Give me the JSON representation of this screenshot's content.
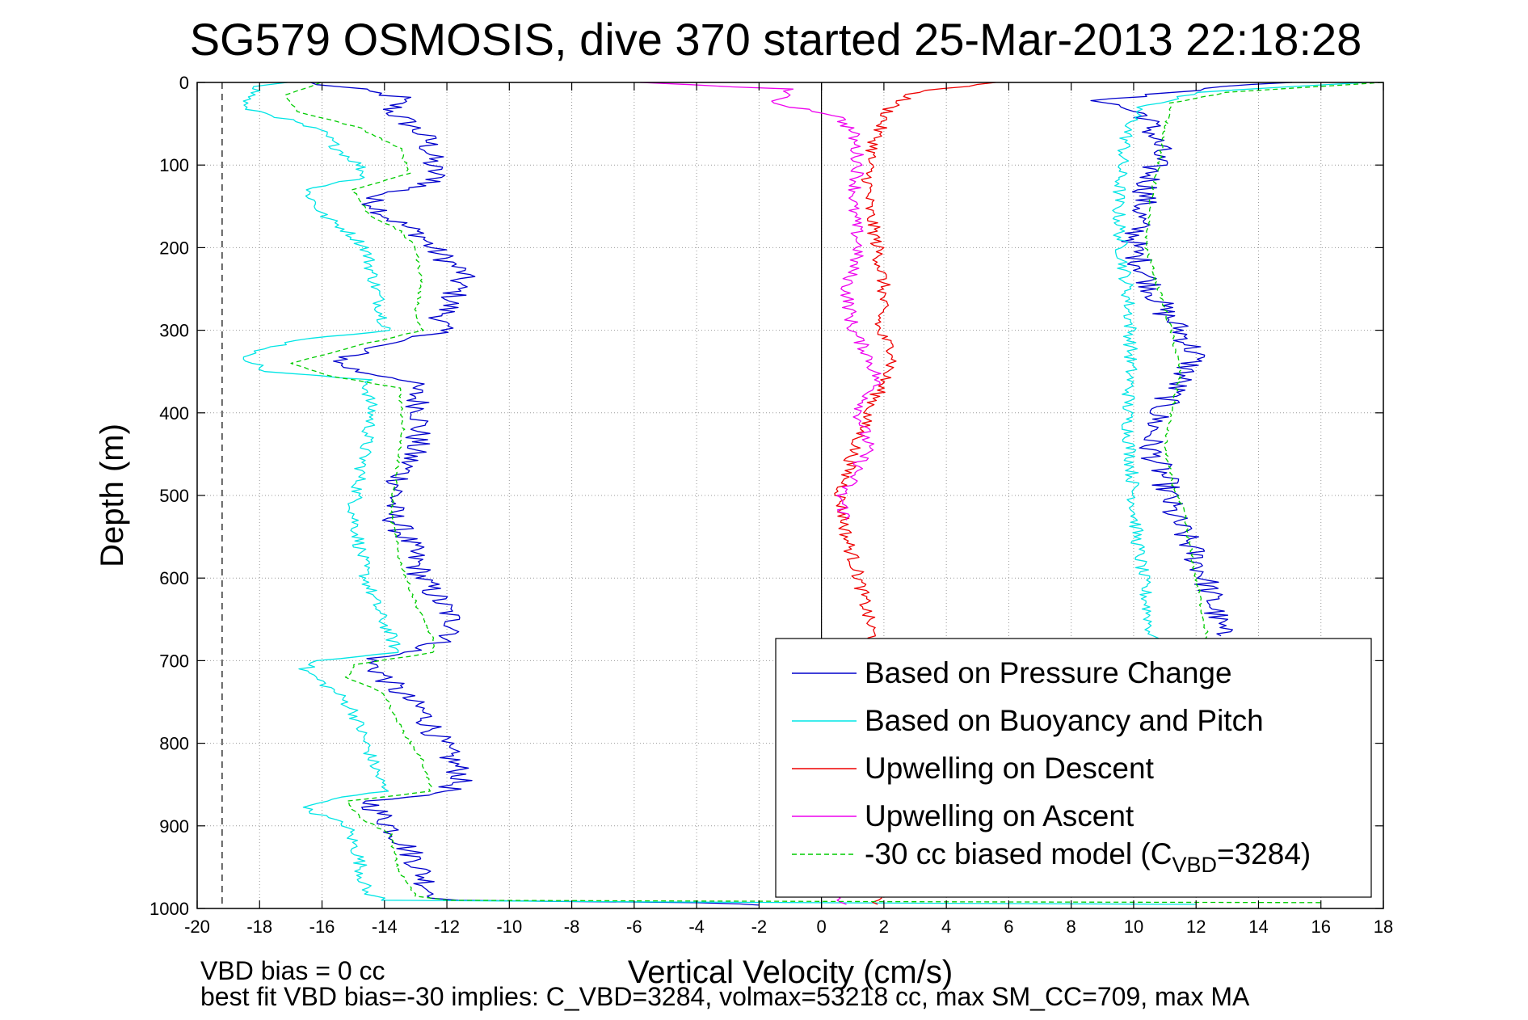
{
  "chart_data": {
    "type": "line",
    "title": "SG579 OSMOSIS, dive 370 started 25-Mar-2013 22:18:28",
    "xlabel": "Vertical Velocity (cm/s)",
    "ylabel": "Depth (m)",
    "xlim": [
      -20,
      18
    ],
    "ylim": [
      0,
      1000
    ],
    "y_reversed": true,
    "grid": true,
    "x_ticks": [
      -20,
      -18,
      -16,
      -14,
      -12,
      -10,
      -8,
      -6,
      -4,
      -2,
      0,
      2,
      4,
      6,
      8,
      10,
      12,
      14,
      16,
      18
    ],
    "y_ticks": [
      0,
      100,
      200,
      300,
      400,
      500,
      600,
      700,
      800,
      900,
      1000
    ],
    "reference_lines": [
      {
        "x": -19.2,
        "style": "dashed"
      },
      {
        "x": 0,
        "style": "solid"
      }
    ],
    "legend_position": "bottom-right",
    "legend_note_main": "-30 cc biased model (C",
    "legend_note_sub": "VBD",
    "legend_note_tail": "=3284)",
    "series": [
      {
        "name": "Based on Pressure Change",
        "color": "#0000cc",
        "style": "solid",
        "points": [
          [
            [
              -16.5,
              0
            ],
            [
              -15,
              8
            ],
            [
              -13.5,
              18
            ],
            [
              -13.8,
              35
            ],
            [
              -13.2,
              50
            ],
            [
              -12.6,
              70
            ],
            [
              -12.5,
              100
            ],
            [
              -12.3,
              120
            ],
            [
              -14.5,
              140
            ],
            [
              -13.8,
              165
            ],
            [
              -12.8,
              185
            ],
            [
              -12.5,
              200
            ],
            [
              -11.5,
              230
            ],
            [
              -11.8,
              260
            ],
            [
              -12.2,
              290
            ],
            [
              -12.3,
              305
            ],
            [
              -14.5,
              320
            ],
            [
              -15.5,
              340
            ],
            [
              -14.8,
              350
            ],
            [
              -13.2,
              360
            ],
            [
              -12.8,
              400
            ],
            [
              -13.0,
              440
            ],
            [
              -13.5,
              480
            ],
            [
              -13.8,
              520
            ],
            [
              -13.2,
              560
            ],
            [
              -12.8,
              600
            ],
            [
              -12.0,
              640
            ],
            [
              -11.6,
              665
            ],
            [
              -12.5,
              682
            ],
            [
              -14.5,
              700
            ],
            [
              -14.0,
              720
            ],
            [
              -13.5,
              740
            ],
            [
              -12.8,
              760
            ],
            [
              -12.2,
              800
            ],
            [
              -11.5,
              840
            ],
            [
              -12.0,
              858
            ],
            [
              -14.5,
              870
            ],
            [
              -13.8,
              900
            ],
            [
              -13.0,
              940
            ],
            [
              -12.5,
              980
            ],
            [
              -12.0,
              990
            ],
            [
              -4,
              993
            ],
            [
              -2,
              996
            ]
          ],
          [
            [
              14.8,
              0
            ],
            [
              11,
              12
            ],
            [
              9,
              22
            ],
            [
              10.4,
              40
            ],
            [
              10.8,
              80
            ],
            [
              10.5,
              120
            ],
            [
              10.2,
              160
            ],
            [
              10.0,
              200
            ],
            [
              10.5,
              240
            ],
            [
              11.0,
              280
            ],
            [
              11.5,
              300
            ],
            [
              12.0,
              330
            ],
            [
              11.5,
              360
            ],
            [
              10.8,
              400
            ],
            [
              10.5,
              440
            ],
            [
              11.0,
              480
            ],
            [
              11.2,
              520
            ],
            [
              11.8,
              560
            ],
            [
              12.3,
              600
            ],
            [
              12.6,
              640
            ],
            [
              12.8,
              670
            ]
          ]
        ]
      },
      {
        "name": "Based on Buoyancy and Pitch",
        "color": "#00e5e5",
        "style": "solid",
        "points": [
          [
            [
              -17,
              0
            ],
            [
              -18,
              5
            ],
            [
              -18.6,
              30
            ],
            [
              -17.5,
              40
            ],
            [
              -16.0,
              60
            ],
            [
              -15.5,
              80
            ],
            [
              -14.8,
              100
            ],
            [
              -14.6,
              115
            ],
            [
              -16.5,
              130
            ],
            [
              -16.0,
              160
            ],
            [
              -15.2,
              180
            ],
            [
              -14.6,
              200
            ],
            [
              -14.4,
              230
            ],
            [
              -14.2,
              260
            ],
            [
              -14.0,
              290
            ],
            [
              -13.8,
              300
            ],
            [
              -16.5,
              310
            ],
            [
              -18.5,
              330
            ],
            [
              -17.8,
              350
            ],
            [
              -14.6,
              360
            ],
            [
              -14.4,
              400
            ],
            [
              -14.6,
              440
            ],
            [
              -14.8,
              480
            ],
            [
              -15.0,
              520
            ],
            [
              -14.8,
              560
            ],
            [
              -14.6,
              600
            ],
            [
              -14.2,
              640
            ],
            [
              -13.8,
              670
            ],
            [
              -13.6,
              690
            ],
            [
              -16.0,
              700
            ],
            [
              -16.6,
              710
            ],
            [
              -15.5,
              740
            ],
            [
              -15.0,
              760
            ],
            [
              -14.6,
              800
            ],
            [
              -14.2,
              840
            ],
            [
              -14.0,
              858
            ],
            [
              -16.0,
              870
            ],
            [
              -16.5,
              880
            ],
            [
              -15.2,
              900
            ],
            [
              -14.8,
              940
            ],
            [
              -14.6,
              980
            ],
            [
              -14.0,
              990
            ],
            [
              -6,
              992
            ],
            [
              12,
              995
            ]
          ],
          [
            [
              17.5,
              0
            ],
            [
              12,
              12
            ],
            [
              10.2,
              30
            ],
            [
              9.8,
              60
            ],
            [
              9.6,
              100
            ],
            [
              9.5,
              150
            ],
            [
              9.6,
              200
            ],
            [
              9.8,
              250
            ],
            [
              9.9,
              300
            ],
            [
              9.9,
              350
            ],
            [
              9.8,
              400
            ],
            [
              9.9,
              450
            ],
            [
              10.0,
              500
            ],
            [
              10.1,
              550
            ],
            [
              10.3,
              600
            ],
            [
              10.5,
              650
            ],
            [
              10.6,
              680
            ]
          ]
        ]
      },
      {
        "name": "Upwelling on Descent",
        "color": "#ee0000",
        "style": "solid",
        "points": [
          [
            [
              5.5,
              0
            ],
            [
              3.0,
              12
            ],
            [
              2.2,
              30
            ],
            [
              1.8,
              60
            ],
            [
              1.5,
              100
            ],
            [
              1.5,
              150
            ],
            [
              1.8,
              200
            ],
            [
              2.0,
              250
            ],
            [
              1.8,
              300
            ],
            [
              2.4,
              330
            ],
            [
              2.0,
              360
            ],
            [
              1.5,
              400
            ],
            [
              1.0,
              450
            ],
            [
              0.6,
              500
            ],
            [
              0.8,
              550
            ],
            [
              1.2,
              600
            ],
            [
              1.5,
              650
            ],
            [
              1.8,
              690
            ]
          ],
          [
            [
              2.0,
              985
            ],
            [
              1.8,
              995
            ]
          ]
        ]
      },
      {
        "name": "Upwelling on Ascent",
        "color": "#ee00ee",
        "style": "solid",
        "points": [
          [
            [
              -6,
              0
            ],
            [
              -1,
              8
            ],
            [
              -1.5,
              25
            ],
            [
              0.5,
              40
            ],
            [
              1.0,
              60
            ],
            [
              1.2,
              100
            ],
            [
              1.0,
              150
            ],
            [
              1.2,
              200
            ],
            [
              0.8,
              250
            ],
            [
              1.0,
              300
            ],
            [
              1.5,
              330
            ],
            [
              1.8,
              360
            ],
            [
              1.2,
              400
            ],
            [
              1.5,
              440
            ],
            [
              1.0,
              480
            ],
            [
              0.6,
              500
            ],
            [
              0.8,
              530
            ]
          ],
          [
            [
              0.5,
              985
            ],
            [
              0.8,
              995
            ]
          ]
        ]
      },
      {
        "name": "-30 cc biased model",
        "color": "#00cc00",
        "style": "dashed",
        "points": [
          [
            [
              -16,
              0
            ],
            [
              -17.2,
              15
            ],
            [
              -16.8,
              35
            ],
            [
              -14.8,
              55
            ],
            [
              -13.5,
              80
            ],
            [
              -13.2,
              110
            ],
            [
              -15.0,
              130
            ],
            [
              -14.5,
              160
            ],
            [
              -13.5,
              180
            ],
            [
              -13.0,
              200
            ],
            [
              -12.8,
              240
            ],
            [
              -13.0,
              280
            ],
            [
              -12.8,
              300
            ],
            [
              -15.0,
              320
            ],
            [
              -17.0,
              340
            ],
            [
              -15.8,
              355
            ],
            [
              -13.5,
              370
            ],
            [
              -13.4,
              420
            ],
            [
              -13.6,
              470
            ],
            [
              -13.8,
              520
            ],
            [
              -13.5,
              580
            ],
            [
              -13.0,
              630
            ],
            [
              -12.5,
              670
            ],
            [
              -12.4,
              690
            ],
            [
              -15.0,
              705
            ],
            [
              -15.2,
              720
            ],
            [
              -14.0,
              740
            ],
            [
              -13.5,
              780
            ],
            [
              -12.8,
              820
            ],
            [
              -12.5,
              858
            ],
            [
              -15.2,
              870
            ],
            [
              -14.8,
              890
            ],
            [
              -13.8,
              910
            ],
            [
              -13.6,
              950
            ],
            [
              -13.0,
              985
            ],
            [
              -12.0,
              990
            ],
            [
              4,
              992
            ],
            [
              16,
              993
            ]
          ],
          [
            [
              18,
              0
            ],
            [
              13,
              12
            ],
            [
              11.2,
              25
            ],
            [
              11.0,
              60
            ],
            [
              10.8,
              100
            ],
            [
              10.5,
              150
            ],
            [
              10.4,
              200
            ],
            [
              10.8,
              250
            ],
            [
              11.2,
              300
            ],
            [
              11.5,
              350
            ],
            [
              11.2,
              400
            ],
            [
              11.0,
              440
            ],
            [
              11.2,
              480
            ],
            [
              11.6,
              520
            ],
            [
              11.8,
              560
            ],
            [
              12.0,
              600
            ],
            [
              12.2,
              640
            ],
            [
              12.4,
              680
            ]
          ]
        ]
      }
    ],
    "annotations": [
      "VBD bias = 0 cc",
      "best fit VBD bias=-30 implies: C_VBD=3284, volmax=53218 cc, max SM_CC=709, max MA"
    ]
  }
}
